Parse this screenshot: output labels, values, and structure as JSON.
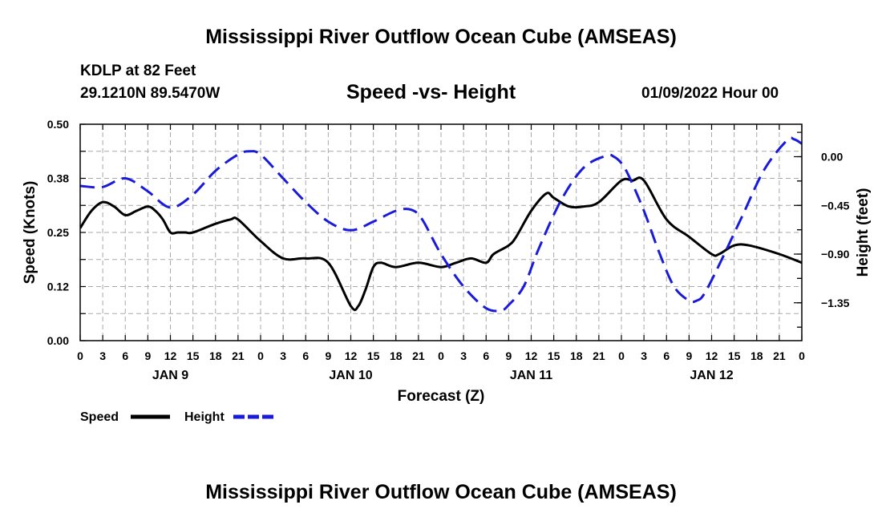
{
  "header": {
    "title": "Mississippi River Outflow Ocean Cube (AMSEAS)",
    "station": "KDLP at 82 Feet",
    "coords": "29.1210N  89.5470W",
    "subtitle": "Speed -vs- Height",
    "datetime": "01/09/2022 Hour 00"
  },
  "footer": {
    "title": "Mississippi River Outflow Ocean Cube (AMSEAS)"
  },
  "chart_data": {
    "type": "line",
    "title": "Speed -vs- Height",
    "xlabel": "Forecast (Z)",
    "ylabel": "Speed (Knots)",
    "y2label": "Height (feet)",
    "x_units": "hours since 01/09/2022 00Z",
    "xlim": [
      0,
      96
    ],
    "ylim": [
      0,
      0.5
    ],
    "y2lim": [
      -1.7,
      0.3
    ],
    "x_tick_labels": [
      "0",
      "3",
      "6",
      "9",
      "12",
      "15",
      "18",
      "21",
      "0",
      "3",
      "6",
      "9",
      "12",
      "15",
      "18",
      "21",
      "0",
      "3",
      "6",
      "9",
      "12",
      "15",
      "18",
      "21",
      "0",
      "3",
      "6",
      "9",
      "12",
      "15",
      "18",
      "21",
      "0"
    ],
    "date_labels": [
      {
        "label": "JAN 9",
        "hour": 12
      },
      {
        "label": "JAN 10",
        "hour": 36
      },
      {
        "label": "JAN 11",
        "hour": 60
      },
      {
        "label": "JAN 12",
        "hour": 84
      }
    ],
    "y_ticks": [
      0.0,
      0.125,
      0.25,
      0.375,
      0.5
    ],
    "y_tick_labels": [
      "0.00",
      "0.12",
      "0.25",
      "0.38",
      "0.50"
    ],
    "y2_ticks": [
      0.0,
      -0.45,
      -0.9,
      -1.35
    ],
    "y2_tick_labels": [
      "0.00",
      "−0.45",
      "−0.90",
      "−1.35"
    ],
    "legend": [
      {
        "name": "Speed",
        "color": "#000000",
        "style": "solid"
      },
      {
        "name": "Height",
        "color": "#1a1adb",
        "style": "dashed"
      }
    ],
    "series": [
      {
        "name": "Speed",
        "axis": "left",
        "color": "#000000",
        "x": [
          0,
          1.5,
          3,
          4.5,
          6,
          7.5,
          9,
          10,
          11,
          12,
          13,
          14,
          15,
          18,
          20,
          21,
          24,
          27,
          30,
          33,
          36,
          37,
          38,
          39,
          40,
          42,
          45,
          48,
          50,
          52,
          54,
          55,
          57,
          58,
          60,
          62,
          63,
          65,
          67,
          69,
          72,
          73.5,
          75,
          78,
          81,
          84,
          85,
          87,
          89,
          93,
          96
        ],
        "values": [
          0.26,
          0.3,
          0.32,
          0.31,
          0.29,
          0.3,
          0.31,
          0.3,
          0.28,
          0.25,
          0.25,
          0.25,
          0.25,
          0.27,
          0.28,
          0.28,
          0.23,
          0.19,
          0.19,
          0.18,
          0.08,
          0.08,
          0.12,
          0.17,
          0.18,
          0.17,
          0.18,
          0.17,
          0.18,
          0.19,
          0.18,
          0.2,
          0.22,
          0.24,
          0.3,
          0.34,
          0.33,
          0.31,
          0.31,
          0.32,
          0.37,
          0.37,
          0.37,
          0.28,
          0.24,
          0.2,
          0.2,
          0.22,
          0.22,
          0.2,
          0.18
        ]
      },
      {
        "name": "Height",
        "axis": "right",
        "color": "#1a1adb",
        "x": [
          0,
          3,
          6,
          9,
          12,
          15,
          18,
          21,
          22.5,
          24,
          27,
          30,
          33,
          36,
          39,
          42,
          44,
          45.5,
          48,
          51,
          54,
          56,
          57,
          59,
          61,
          64,
          67,
          70,
          71,
          72,
          73,
          75,
          77,
          79,
          81,
          82,
          83,
          85,
          88,
          91,
          94,
          95,
          96
        ],
        "values": [
          -0.27,
          -0.28,
          -0.2,
          -0.32,
          -0.47,
          -0.35,
          -0.13,
          0.02,
          0.05,
          0.02,
          -0.2,
          -0.42,
          -0.6,
          -0.68,
          -0.6,
          -0.5,
          -0.49,
          -0.58,
          -0.9,
          -1.2,
          -1.4,
          -1.42,
          -1.37,
          -1.2,
          -0.85,
          -0.4,
          -0.1,
          0.01,
          0.0,
          -0.06,
          -0.18,
          -0.5,
          -0.88,
          -1.2,
          -1.33,
          -1.33,
          -1.27,
          -1.0,
          -0.56,
          -0.12,
          0.15,
          0.16,
          0.12
        ]
      }
    ]
  }
}
